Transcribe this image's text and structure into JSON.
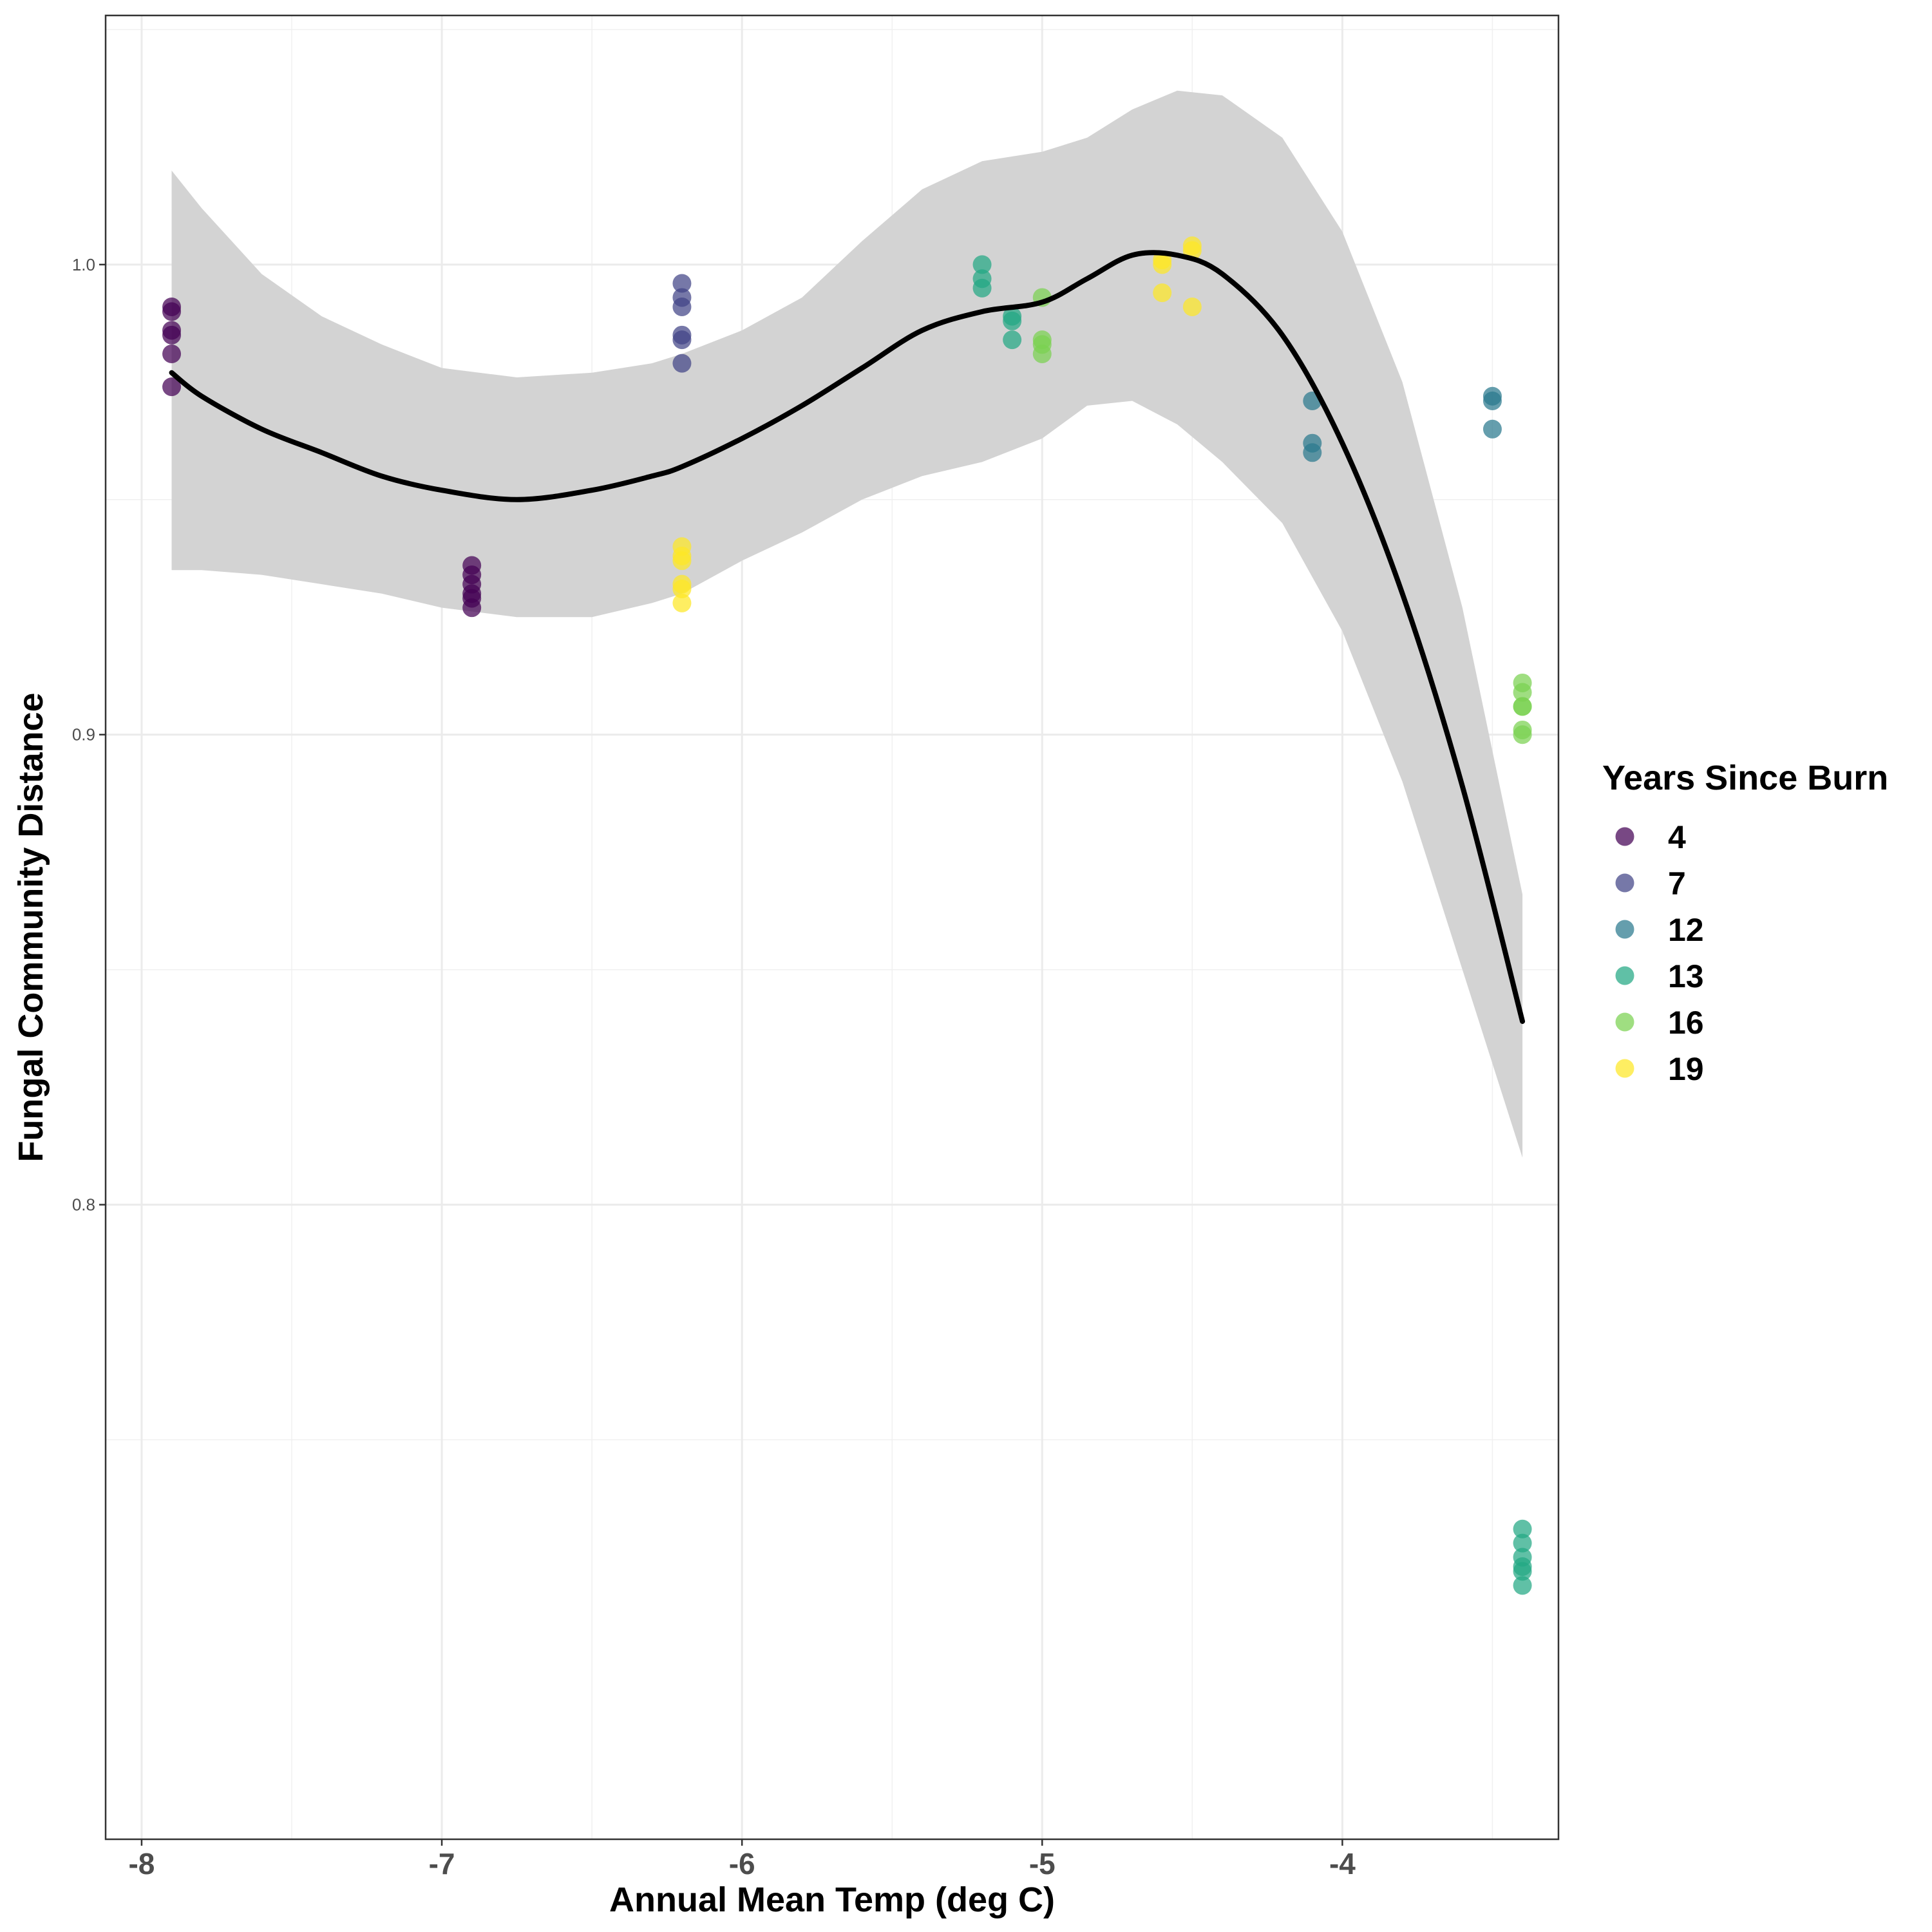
{
  "chart_data": {
    "type": "scatter",
    "xlabel": "Annual Mean Temp (deg C)",
    "ylabel": "Fungal Community Distance",
    "xlim": [
      -8.12,
      -3.28
    ],
    "ylim": [
      0.665,
      1.053
    ],
    "x_ticks": [
      -8,
      -7,
      -6,
      -5,
      -4
    ],
    "x_tick_labels": [
      "-8",
      "-7",
      "-6",
      "-5",
      "-4"
    ],
    "y_ticks": [
      0.8,
      0.9,
      1.0
    ],
    "y_tick_labels": [
      "0.8",
      "0.9",
      "1.0"
    ],
    "grid": true,
    "legend": {
      "title": "Years Since Burn",
      "position": "right",
      "entries": [
        {
          "label": "4",
          "color": "#440154"
        },
        {
          "label": "7",
          "color": "#414487"
        },
        {
          "label": "12",
          "color": "#2A788E"
        },
        {
          "label": "13",
          "color": "#22A884"
        },
        {
          "label": "16",
          "color": "#7AD151"
        },
        {
          "label": "19",
          "color": "#FDE725"
        }
      ]
    },
    "series": [
      {
        "name": "4",
        "color": "#440154",
        "points": [
          [
            -7.9,
            0.991
          ],
          [
            -7.9,
            0.99
          ],
          [
            -7.9,
            0.986
          ],
          [
            -7.9,
            0.985
          ],
          [
            -7.9,
            0.981
          ],
          [
            -7.9,
            0.974
          ],
          [
            -6.9,
            0.936
          ],
          [
            -6.9,
            0.934
          ],
          [
            -6.9,
            0.932
          ],
          [
            -6.9,
            0.93
          ],
          [
            -6.9,
            0.929
          ],
          [
            -6.9,
            0.927
          ]
        ]
      },
      {
        "name": "7",
        "color": "#414487",
        "points": [
          [
            -6.2,
            0.996
          ],
          [
            -6.2,
            0.993
          ],
          [
            -6.2,
            0.991
          ],
          [
            -6.2,
            0.985
          ],
          [
            -6.2,
            0.984
          ],
          [
            -6.2,
            0.979
          ]
        ]
      },
      {
        "name": "12",
        "color": "#2A788E",
        "points": [
          [
            -4.1,
            0.971
          ],
          [
            -4.1,
            0.962
          ],
          [
            -4.1,
            0.96
          ],
          [
            -3.5,
            0.972
          ],
          [
            -3.5,
            0.971
          ],
          [
            -3.5,
            0.965
          ]
        ]
      },
      {
        "name": "13",
        "color": "#22A884",
        "points": [
          [
            -5.2,
            1.0
          ],
          [
            -5.2,
            0.997
          ],
          [
            -5.2,
            0.995
          ],
          [
            -5.1,
            0.989
          ],
          [
            -5.1,
            0.988
          ],
          [
            -5.1,
            0.984
          ],
          [
            -3.4,
            0.731
          ],
          [
            -3.4,
            0.728
          ],
          [
            -3.4,
            0.725
          ],
          [
            -3.4,
            0.723
          ],
          [
            -3.4,
            0.722
          ],
          [
            -3.4,
            0.719
          ]
        ]
      },
      {
        "name": "16",
        "color": "#7AD151",
        "points": [
          [
            -5.0,
            0.993
          ],
          [
            -5.0,
            0.984
          ],
          [
            -5.0,
            0.983
          ],
          [
            -5.0,
            0.981
          ],
          [
            -3.4,
            0.911
          ],
          [
            -3.4,
            0.909
          ],
          [
            -3.4,
            0.906
          ],
          [
            -3.4,
            0.906
          ],
          [
            -3.4,
            0.901
          ],
          [
            -3.4,
            0.9
          ]
        ]
      },
      {
        "name": "19",
        "color": "#FDE725",
        "points": [
          [
            -6.2,
            0.94
          ],
          [
            -6.2,
            0.938
          ],
          [
            -6.2,
            0.937
          ],
          [
            -6.2,
            0.932
          ],
          [
            -6.2,
            0.931
          ],
          [
            -6.2,
            0.928
          ],
          [
            -4.6,
            1.001
          ],
          [
            -4.6,
            1.0
          ],
          [
            -4.6,
            0.994
          ],
          [
            -4.5,
            1.004
          ],
          [
            -4.5,
            1.003
          ],
          [
            -4.5,
            0.991
          ]
        ]
      }
    ],
    "smooth": {
      "color": "#000000",
      "band_color": "#d3d3d3",
      "points": [
        {
          "x": -7.9,
          "y": 0.977,
          "lo": 0.935,
          "hi": 1.02
        },
        {
          "x": -7.8,
          "y": 0.972,
          "lo": 0.935,
          "hi": 1.012
        },
        {
          "x": -7.6,
          "y": 0.965,
          "lo": 0.934,
          "hi": 0.998
        },
        {
          "x": -7.4,
          "y": 0.96,
          "lo": 0.932,
          "hi": 0.989
        },
        {
          "x": -7.2,
          "y": 0.955,
          "lo": 0.93,
          "hi": 0.983
        },
        {
          "x": -7.0,
          "y": 0.952,
          "lo": 0.927,
          "hi": 0.978
        },
        {
          "x": -6.75,
          "y": 0.95,
          "lo": 0.925,
          "hi": 0.976
        },
        {
          "x": -6.5,
          "y": 0.952,
          "lo": 0.925,
          "hi": 0.977
        },
        {
          "x": -6.3,
          "y": 0.955,
          "lo": 0.928,
          "hi": 0.979
        },
        {
          "x": -6.2,
          "y": 0.957,
          "lo": 0.93,
          "hi": 0.981
        },
        {
          "x": -6.0,
          "y": 0.963,
          "lo": 0.937,
          "hi": 0.986
        },
        {
          "x": -5.8,
          "y": 0.97,
          "lo": 0.943,
          "hi": 0.993
        },
        {
          "x": -5.6,
          "y": 0.978,
          "lo": 0.95,
          "hi": 1.005
        },
        {
          "x": -5.4,
          "y": 0.986,
          "lo": 0.955,
          "hi": 1.016
        },
        {
          "x": -5.2,
          "y": 0.99,
          "lo": 0.958,
          "hi": 1.022
        },
        {
          "x": -5.0,
          "y": 0.992,
          "lo": 0.963,
          "hi": 1.024
        },
        {
          "x": -4.85,
          "y": 0.997,
          "lo": 0.97,
          "hi": 1.027
        },
        {
          "x": -4.7,
          "y": 1.002,
          "lo": 0.971,
          "hi": 1.033
        },
        {
          "x": -4.55,
          "y": 1.002,
          "lo": 0.966,
          "hi": 1.037
        },
        {
          "x": -4.4,
          "y": 0.998,
          "lo": 0.958,
          "hi": 1.036
        },
        {
          "x": -4.2,
          "y": 0.985,
          "lo": 0.945,
          "hi": 1.027
        },
        {
          "x": -4.0,
          "y": 0.962,
          "lo": 0.922,
          "hi": 1.007
        },
        {
          "x": -3.8,
          "y": 0.93,
          "lo": 0.89,
          "hi": 0.975
        },
        {
          "x": -3.6,
          "y": 0.889,
          "lo": 0.85,
          "hi": 0.927
        },
        {
          "x": -3.4,
          "y": 0.839,
          "lo": 0.81,
          "hi": 0.866
        }
      ]
    }
  }
}
